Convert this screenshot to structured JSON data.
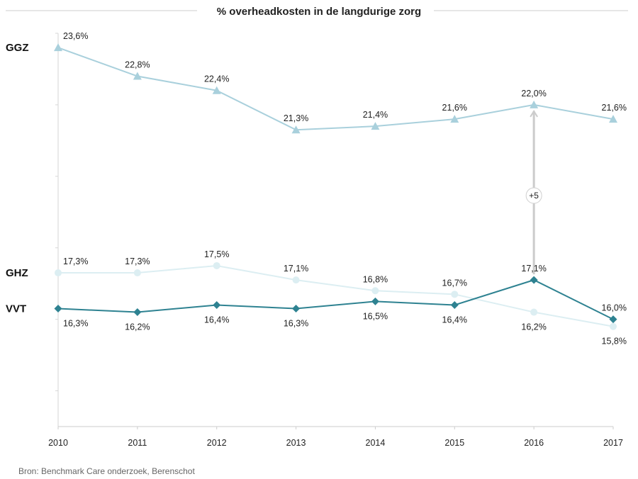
{
  "chart_data": {
    "type": "line",
    "title": "% overheadkosten in de langdurige zorg",
    "categories": [
      "2010",
      "2011",
      "2012",
      "2013",
      "2014",
      "2015",
      "2016",
      "2017"
    ],
    "ylim": [
      13.0,
      24.0
    ],
    "series": [
      {
        "name": "GGZ",
        "marker": "triangle",
        "color": "#a9d0dc",
        "values": [
          23.6,
          22.8,
          22.4,
          21.3,
          21.4,
          21.6,
          22.0,
          21.6
        ],
        "labels": [
          "23,6%",
          "22,8%",
          "22,4%",
          "21,3%",
          "21,4%",
          "21,6%",
          "22,0%",
          "21,6%"
        ]
      },
      {
        "name": "GHZ",
        "marker": "circle",
        "color": "#dceef2",
        "values": [
          17.3,
          17.3,
          17.5,
          17.1,
          16.8,
          16.7,
          16.2,
          15.8
        ],
        "labels": [
          "17,3%",
          "17,3%",
          "17,5%",
          "17,1%",
          "16,8%",
          "16,7%",
          "16,2%",
          "15,8%"
        ]
      },
      {
        "name": "VVT",
        "marker": "diamond",
        "color": "#2e8291",
        "values": [
          16.3,
          16.2,
          16.4,
          16.3,
          16.5,
          16.4,
          17.1,
          16.0
        ],
        "labels": [
          "16,3%",
          "16,2%",
          "16,4%",
          "16,3%",
          "16,5%",
          "16,4%",
          "17,1%",
          "16,0%"
        ]
      }
    ],
    "annotation": {
      "category": "2016",
      "from_series": "VVT",
      "to_series": "GGZ",
      "text": "+5"
    },
    "source": "Bron: Benchmark Care onderzoek, Berenschot"
  }
}
